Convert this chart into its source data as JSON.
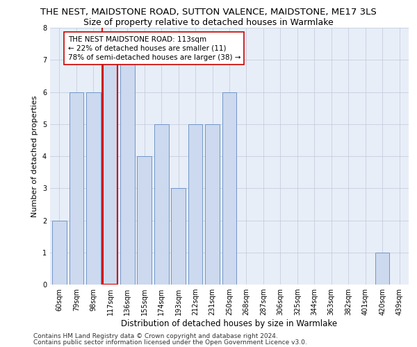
{
  "title": "THE NEST, MAIDSTONE ROAD, SUTTON VALENCE, MAIDSTONE, ME17 3LS",
  "subtitle": "Size of property relative to detached houses in Warmlake",
  "xlabel": "Distribution of detached houses by size in Warmlake",
  "ylabel": "Number of detached properties",
  "categories": [
    "60sqm",
    "79sqm",
    "98sqm",
    "117sqm",
    "136sqm",
    "155sqm",
    "174sqm",
    "193sqm",
    "212sqm",
    "231sqm",
    "250sqm",
    "268sqm",
    "287sqm",
    "306sqm",
    "325sqm",
    "344sqm",
    "363sqm",
    "382sqm",
    "401sqm",
    "420sqm",
    "439sqm"
  ],
  "values": [
    2,
    6,
    6,
    7,
    7,
    4,
    5,
    3,
    5,
    5,
    6,
    0,
    0,
    0,
    0,
    0,
    0,
    0,
    0,
    1,
    0
  ],
  "bar_color": "#ccd9ee",
  "bar_edgecolor": "#7096c8",
  "highlight_index": 3,
  "highlight_line_color": "#cc0000",
  "ylim": [
    0,
    8
  ],
  "yticks": [
    0,
    1,
    2,
    3,
    4,
    5,
    6,
    7,
    8
  ],
  "annotation_text": "THE NEST MAIDSTONE ROAD: 113sqm\n← 22% of detached houses are smaller (11)\n78% of semi-detached houses are larger (38) →",
  "annotation_box_color": "#ffffff",
  "annotation_box_edgecolor": "#cc0000",
  "footer1": "Contains HM Land Registry data © Crown copyright and database right 2024.",
  "footer2": "Contains public sector information licensed under the Open Government Licence v3.0.",
  "background_color": "#e8eef8",
  "title_fontsize": 9.5,
  "subtitle_fontsize": 9,
  "xlabel_fontsize": 8.5,
  "ylabel_fontsize": 8,
  "tick_fontsize": 7,
  "annotation_fontsize": 7.5,
  "footer_fontsize": 6.5
}
